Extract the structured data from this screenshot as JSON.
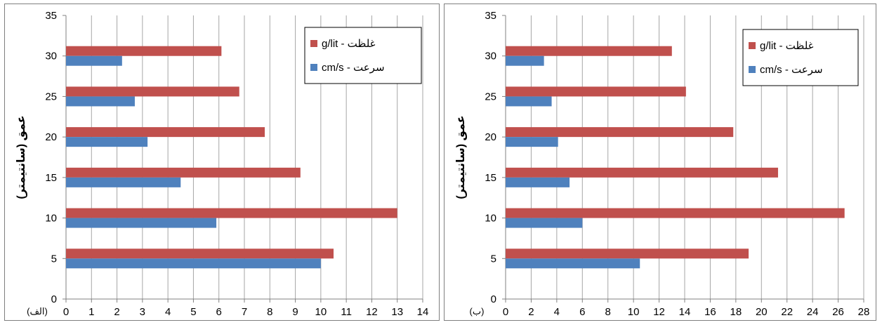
{
  "colors": {
    "density": "#c0504d",
    "velocity": "#4f81bd",
    "grid": "#a6a6a6",
    "frame": "#000000"
  },
  "chart_data": [
    {
      "type": "bar",
      "orientation": "horizontal",
      "panel_label": "(الف)",
      "ylabel": "عمق (سانتیمتر)",
      "y_ticks": [
        "0",
        "5",
        "10",
        "15",
        "20",
        "25",
        "30",
        "35"
      ],
      "x_ticks": [
        "0",
        "1",
        "2",
        "3",
        "4",
        "5",
        "6",
        "7",
        "8",
        "9",
        "10",
        "11",
        "12",
        "13",
        "14"
      ],
      "xlim": [
        0,
        14
      ],
      "ylim": [
        0,
        35
      ],
      "categories": [
        5,
        10,
        15,
        20,
        25,
        30
      ],
      "series": [
        {
          "name": "غلظت - g/lit",
          "color": "#c0504d",
          "values": [
            10.5,
            13.0,
            9.2,
            7.8,
            6.8,
            6.1
          ]
        },
        {
          "name": "سرعت - cm/s",
          "color": "#4f81bd",
          "values": [
            10.0,
            5.9,
            4.5,
            3.2,
            2.7,
            2.2
          ]
        }
      ],
      "grid": "vertical",
      "legend": "top-right"
    },
    {
      "type": "bar",
      "orientation": "horizontal",
      "panel_label": "(ب)",
      "ylabel": "عمق (سانتیمتر)",
      "y_ticks": [
        "0",
        "5",
        "10",
        "15",
        "20",
        "25",
        "30",
        "35"
      ],
      "x_ticks": [
        "0",
        "2",
        "4",
        "6",
        "8",
        "10",
        "12",
        "14",
        "16",
        "18",
        "20",
        "22",
        "24",
        "26",
        "28"
      ],
      "xlim": [
        0,
        28
      ],
      "ylim": [
        0,
        35
      ],
      "categories": [
        5,
        10,
        15,
        20,
        25,
        30
      ],
      "series": [
        {
          "name": "غلظت - g/lit",
          "color": "#c0504d",
          "values": [
            19.0,
            26.5,
            21.3,
            17.8,
            14.1,
            13.0
          ]
        },
        {
          "name": "سرعت - cm/s",
          "color": "#4f81bd",
          "values": [
            10.5,
            6.0,
            5.0,
            4.1,
            3.6,
            3.0
          ]
        }
      ],
      "grid": "vertical",
      "legend": "top-right"
    }
  ]
}
